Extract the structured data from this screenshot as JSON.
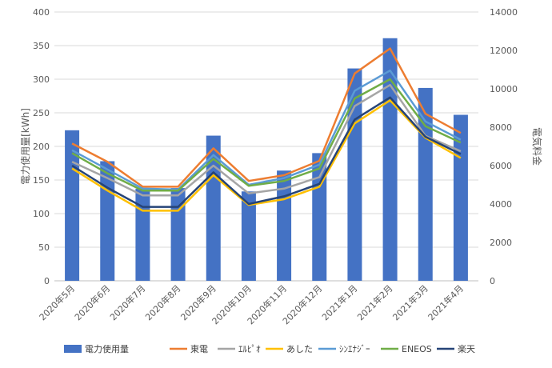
{
  "chart_data": {
    "type": "bar",
    "categories": [
      "2020年5月",
      "2020年6月",
      "2020年7月",
      "2020年8月",
      "2020年9月",
      "2020年10月",
      "2020年11月",
      "2020年12月",
      "2021年1月",
      "2021年2月",
      "2021年3月",
      "2021年4月"
    ],
    "series": [
      {
        "name": "電力使用量",
        "type": "bar",
        "axis": "left",
        "color": "#4472C4",
        "values": [
          224,
          178,
          137,
          138,
          216,
          133,
          164,
          190,
          316,
          361,
          287,
          247
        ]
      },
      {
        "name": "東電",
        "type": "line",
        "axis": "right",
        "color": "#ED7D31",
        "values": [
          7150,
          6200,
          4900,
          4900,
          6900,
          5200,
          5500,
          6250,
          10800,
          12100,
          8700,
          7700
        ]
      },
      {
        "name": "ｴﾙﾋﾟｵ",
        "type": "line",
        "axis": "right",
        "color": "#A5A5A5",
        "values": [
          6200,
          5350,
          4450,
          4450,
          6000,
          4550,
          4800,
          5400,
          9100,
          10200,
          7550,
          6750
        ]
      },
      {
        "name": "あした",
        "type": "line",
        "axis": "right",
        "color": "#FFC000",
        "values": [
          5850,
          4700,
          3650,
          3650,
          5500,
          3950,
          4250,
          4900,
          8200,
          9400,
          7450,
          6400
        ]
      },
      {
        "name": "ｼﾝｴﾅｼﾞｰ",
        "type": "line",
        "axis": "right",
        "color": "#5B9BD5",
        "values": [
          6800,
          5800,
          4800,
          4750,
          6550,
          5000,
          5350,
          6050,
          9900,
          10950,
          8300,
          7350
        ]
      },
      {
        "name": "ENEOS",
        "type": "line",
        "axis": "right",
        "color": "#70AD47",
        "values": [
          6650,
          5600,
          4700,
          4700,
          6350,
          4950,
          5200,
          5850,
          9500,
          10500,
          8050,
          7200
        ]
      },
      {
        "name": "楽天",
        "type": "line",
        "axis": "right",
        "color": "#264478",
        "values": [
          6000,
          4850,
          3850,
          3850,
          5650,
          4000,
          4400,
          5050,
          8400,
          9550,
          7500,
          6600
        ]
      }
    ],
    "y_left": {
      "label": "電力使用量[kWh]",
      "min": 0,
      "max": 400,
      "step": 50
    },
    "y_right": {
      "label": "電気料金",
      "min": 0,
      "max": 14000,
      "step": 2000
    },
    "grid": true,
    "legend": "bottom"
  }
}
